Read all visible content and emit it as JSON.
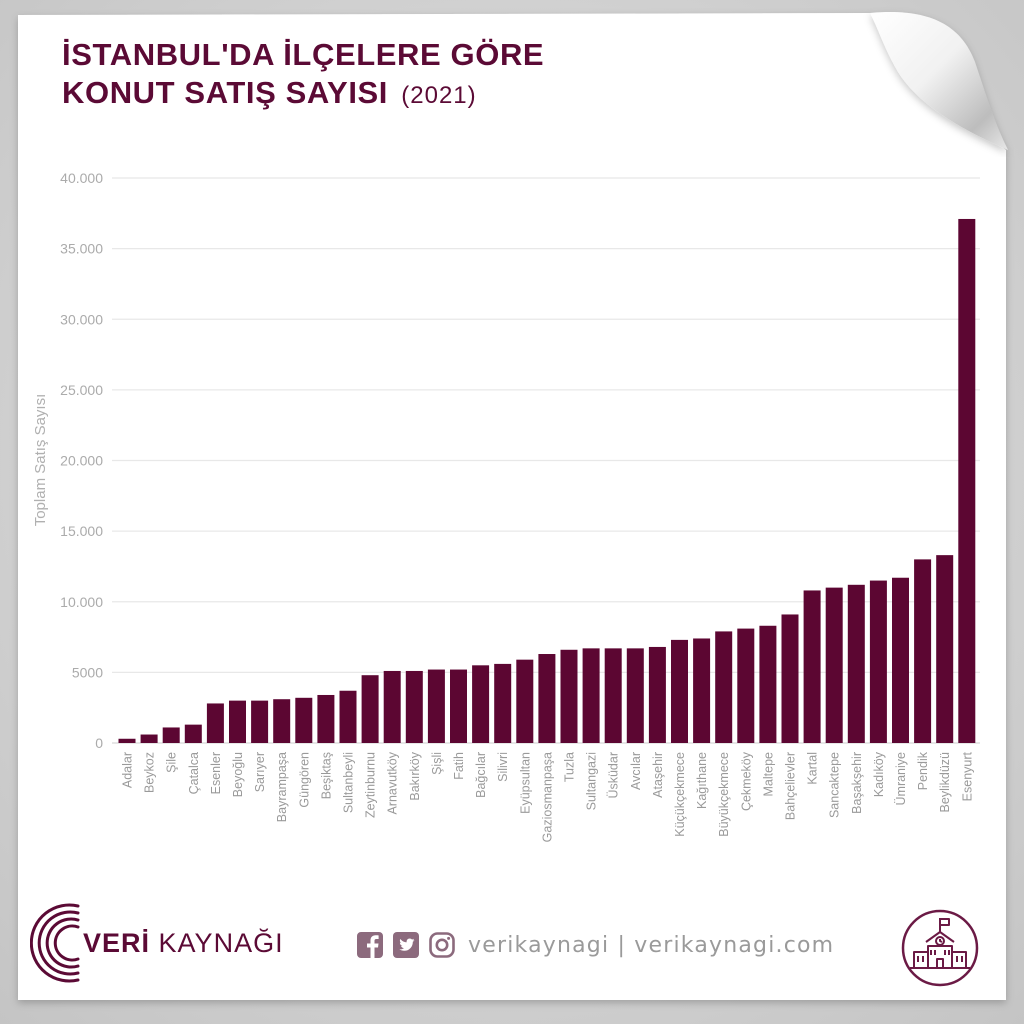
{
  "chart_data": {
    "type": "bar",
    "title_lines": [
      "İSTANBUL'DA İLÇELERE GÖRE",
      "KONUT SATIŞ SAYISI"
    ],
    "subtitle": "(2021)",
    "ylabel": "Toplam Satış Sayısı",
    "xlabel": "",
    "ylim": [
      0,
      40000
    ],
    "y_ticks": [
      0,
      5000,
      10000,
      15000,
      20000,
      25000,
      30000,
      35000,
      40000
    ],
    "y_tick_labels": [
      "0",
      "5000",
      "10.000",
      "15.000",
      "20.000",
      "25.000",
      "30.000",
      "35.000",
      "40.000"
    ],
    "grid": true,
    "legend": "none",
    "bar_color": "#5c0632",
    "categories": [
      "Adalar",
      "Beykoz",
      "Şile",
      "Çatalca",
      "Esenler",
      "Beyoğlu",
      "Sarıyer",
      "Bayrampaşa",
      "Güngören",
      "Beşiktaş",
      "Sultanbeyli",
      "Zeytinburnu",
      "Arnavutköy",
      "Bakırköy",
      "Şişli",
      "Fatih",
      "Bağcılar",
      "Silivri",
      "Eyüpsultan",
      "Gaziosmanpaşa",
      "Tuzla",
      "Sultangazi",
      "Üsküdar",
      "Avcılar",
      "Ataşehir",
      "Küçükçekmece",
      "Kağıthane",
      "Büyükçekmece",
      "Çekmeköy",
      "Maltepe",
      "Bahçelievler",
      "Kartal",
      "Sancaktepe",
      "Başakşehir",
      "Kadıköy",
      "Ümraniye",
      "Pendik",
      "Beylikdüzü",
      "Esenyurt"
    ],
    "values": [
      300,
      600,
      1100,
      1300,
      2800,
      3000,
      3000,
      3100,
      3200,
      3400,
      3700,
      4800,
      5100,
      5100,
      5200,
      5200,
      5500,
      5600,
      5900,
      6300,
      6600,
      6700,
      6700,
      6700,
      6800,
      7300,
      7400,
      7900,
      8100,
      8300,
      9100,
      10800,
      11000,
      11200,
      11500,
      11700,
      13000,
      13300,
      37100
    ]
  },
  "footer": {
    "brand_bold": "VERİ",
    "brand_regular": "KAYNAĞI",
    "social_text": "verikaynagi | verikaynagi.com"
  },
  "icons": {
    "facebook": "facebook-icon",
    "twitter": "twitter-icon",
    "instagram": "instagram-icon",
    "badge": "school-building-icon"
  },
  "colors": {
    "brand": "#5b0a35",
    "social": "#8c6a7d",
    "page_background": "#d3d3d3",
    "paper": "#ffffff"
  }
}
